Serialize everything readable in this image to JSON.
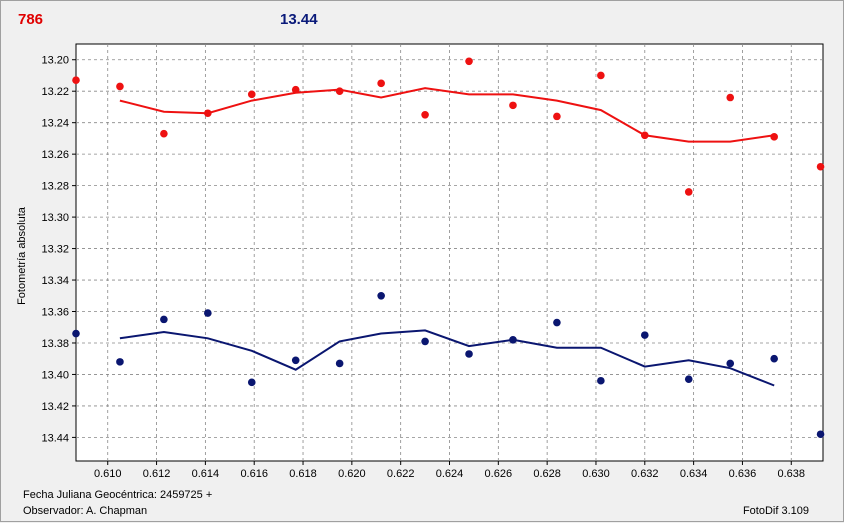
{
  "header": {
    "left_value": "786",
    "right_value": "13.44"
  },
  "footer": {
    "date_label": "Fecha Juliana Geocéntrica: 2459725 +",
    "observer": "Observador: A. Chapman",
    "software": "FotoDif 3.109"
  },
  "colors": {
    "series1": "#ee1111",
    "series2": "#0a1670",
    "grid": "#888888"
  },
  "chart_data": {
    "type": "scatter",
    "title": "",
    "xlabel": "Fecha Juliana Geocéntrica: 2459725 +",
    "ylabel": "Fotometría absoluta",
    "xlim": [
      0.6087,
      0.6393
    ],
    "ylim": [
      13.455,
      13.19
    ],
    "y_inverted": true,
    "grid": true,
    "xticks": [
      "0.610",
      "0.612",
      "0.614",
      "0.616",
      "0.618",
      "0.620",
      "0.622",
      "0.624",
      "0.626",
      "0.628",
      "0.630",
      "0.632",
      "0.634",
      "0.636",
      "0.638"
    ],
    "yticks": [
      "13.20",
      "13.22",
      "13.24",
      "13.26",
      "13.28",
      "13.30",
      "13.32",
      "13.34",
      "13.36",
      "13.38",
      "13.40",
      "13.42",
      "13.44"
    ],
    "series": [
      {
        "color": "#ee1111",
        "points": [
          [
            0.6087,
            13.213
          ],
          [
            0.6105,
            13.217
          ],
          [
            0.6123,
            13.247
          ],
          [
            0.6141,
            13.234
          ],
          [
            0.6159,
            13.222
          ],
          [
            0.6177,
            13.219
          ],
          [
            0.6195,
            13.22
          ],
          [
            0.6212,
            13.215
          ],
          [
            0.623,
            13.235
          ],
          [
            0.6248,
            13.201
          ],
          [
            0.6266,
            13.229
          ],
          [
            0.6284,
            13.236
          ],
          [
            0.6302,
            13.21
          ],
          [
            0.632,
            13.248
          ],
          [
            0.6338,
            13.284
          ],
          [
            0.6355,
            13.224
          ],
          [
            0.6373,
            13.249
          ],
          [
            0.6392,
            13.268
          ]
        ],
        "trend": [
          [
            0.6105,
            13.226
          ],
          [
            0.6123,
            13.233
          ],
          [
            0.6141,
            13.234
          ],
          [
            0.6159,
            13.226
          ],
          [
            0.6177,
            13.221
          ],
          [
            0.6195,
            13.219
          ],
          [
            0.6212,
            13.224
          ],
          [
            0.623,
            13.218
          ],
          [
            0.6248,
            13.222
          ],
          [
            0.6266,
            13.222
          ],
          [
            0.6284,
            13.226
          ],
          [
            0.6302,
            13.232
          ],
          [
            0.632,
            13.248
          ],
          [
            0.6338,
            13.252
          ],
          [
            0.6355,
            13.252
          ],
          [
            0.6373,
            13.248
          ]
        ]
      },
      {
        "color": "#0a1670",
        "points": [
          [
            0.6087,
            13.374
          ],
          [
            0.6105,
            13.392
          ],
          [
            0.6123,
            13.365
          ],
          [
            0.6141,
            13.361
          ],
          [
            0.6159,
            13.405
          ],
          [
            0.6177,
            13.391
          ],
          [
            0.6195,
            13.393
          ],
          [
            0.6212,
            13.35
          ],
          [
            0.623,
            13.379
          ],
          [
            0.6248,
            13.387
          ],
          [
            0.6266,
            13.378
          ],
          [
            0.6284,
            13.367
          ],
          [
            0.6302,
            13.404
          ],
          [
            0.632,
            13.375
          ],
          [
            0.6338,
            13.403
          ],
          [
            0.6355,
            13.393
          ],
          [
            0.6373,
            13.39
          ],
          [
            0.6392,
            13.438
          ]
        ],
        "trend": [
          [
            0.6105,
            13.377
          ],
          [
            0.6123,
            13.373
          ],
          [
            0.6141,
            13.377
          ],
          [
            0.6159,
            13.385
          ],
          [
            0.6177,
            13.397
          ],
          [
            0.6195,
            13.379
          ],
          [
            0.6212,
            13.374
          ],
          [
            0.623,
            13.372
          ],
          [
            0.6248,
            13.382
          ],
          [
            0.6266,
            13.378
          ],
          [
            0.6284,
            13.383
          ],
          [
            0.6302,
            13.383
          ],
          [
            0.632,
            13.395
          ],
          [
            0.6338,
            13.391
          ],
          [
            0.6355,
            13.396
          ],
          [
            0.6373,
            13.407
          ]
        ]
      }
    ]
  }
}
